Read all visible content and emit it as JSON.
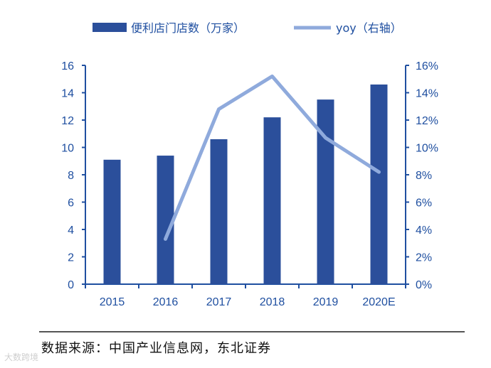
{
  "chart_data": {
    "type": "bar",
    "categories": [
      "2015",
      "2016",
      "2017",
      "2018",
      "2019",
      "2020E"
    ],
    "series": [
      {
        "name": "便利店门店数（万家）",
        "type": "bar",
        "axis": "left",
        "values": [
          9.1,
          9.4,
          10.6,
          12.2,
          13.5,
          14.6
        ],
        "color": "#2b4f9b"
      },
      {
        "name": "yoy（右轴）",
        "type": "line",
        "axis": "right",
        "values": [
          null,
          3.3,
          12.8,
          15.2,
          10.7,
          8.2
        ],
        "color": "#8faadc"
      }
    ],
    "y_left": {
      "ylim": [
        0,
        16
      ],
      "ticks": [
        "0",
        "2",
        "4",
        "6",
        "8",
        "10",
        "12",
        "14",
        "16"
      ]
    },
    "y_right": {
      "ylim": [
        0,
        16
      ],
      "ticks": [
        "0%",
        "2%",
        "4%",
        "6%",
        "8%",
        "10%",
        "12%",
        "14%",
        "16%"
      ]
    },
    "grid": false,
    "legend_position": "top",
    "axis_color": "#1f4fa0"
  },
  "source": "数据来源：中国产业信息网，东北证券",
  "watermark": "大数跨境"
}
